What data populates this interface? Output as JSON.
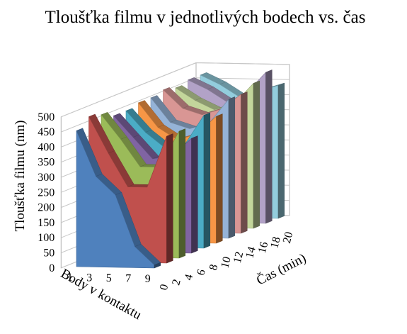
{
  "chart_data": {
    "type": "area",
    "title": "Tloušťka filmu v jednotlivých  bodech vs. čas",
    "zlabel": "Tloušťka filmu  (nm)",
    "xlabel": "Body v kontaktu",
    "ylabel": "Čas (min)",
    "zlim": [
      0,
      500
    ],
    "z_ticks": [
      "0",
      "50",
      "100",
      "150",
      "200",
      "250",
      "300",
      "350",
      "400",
      "450",
      "500"
    ],
    "x_ticks": [
      "1",
      "3",
      "5",
      "7",
      "9"
    ],
    "y_ticks": [
      "0",
      "2",
      "4",
      "6",
      "8",
      "10",
      "12",
      "14",
      "16",
      "18",
      "20"
    ],
    "grid": true,
    "series": [
      {
        "time": "0",
        "color": "#4F81BD",
        "values": [
          450,
          300,
          240,
          70,
          10
        ]
      },
      {
        "time": "2",
        "color": "#C0504D",
        "values": [
          480,
          360,
          250,
          250,
          420
        ]
      },
      {
        "time": "4",
        "color": "#9BBB59",
        "values": [
          470,
          390,
          300,
          300,
          420
        ]
      },
      {
        "time": "6",
        "color": "#8064A2",
        "values": [
          450,
          380,
          310,
          320,
          380
        ]
      },
      {
        "time": "8",
        "color": "#4BACC6",
        "values": [
          450,
          380,
          330,
          340,
          440
        ]
      },
      {
        "time": "10",
        "color": "#F79646",
        "values": [
          460,
          380,
          340,
          360,
          420
        ]
      },
      {
        "time": "12",
        "color": "#95B3D7",
        "values": [
          460,
          380,
          360,
          380,
          460
        ]
      },
      {
        "time": "14",
        "color": "#D99694",
        "values": [
          470,
          410,
          390,
          410,
          460
        ]
      },
      {
        "time": "16",
        "color": "#C3D69B",
        "values": [
          460,
          420,
          390,
          410,
          480
        ]
      },
      {
        "time": "18",
        "color": "#B2A2C7",
        "values": [
          470,
          440,
          400,
          430,
          500
        ]
      },
      {
        "time": "20",
        "color": "#93CDDD",
        "values": [
          470,
          440,
          400,
          420,
          440
        ]
      }
    ]
  }
}
